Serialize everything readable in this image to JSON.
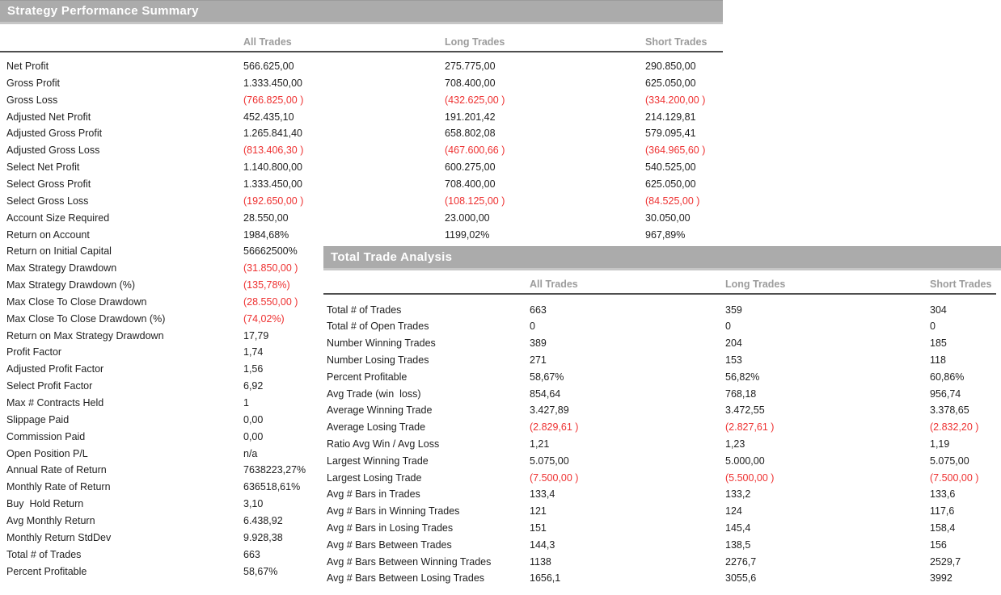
{
  "colors": {
    "header_bar": "#ababab",
    "header_bar_edge_top": "#9b9b9b",
    "header_bar_edge_bottom": "#c6c6c6",
    "header_title_text": "#ffffff",
    "column_header_text": "#9c9c9c",
    "body_text": "#1f1f1f",
    "negative_value": "#ee3131",
    "rule_line": "#4f4f4f"
  },
  "performance_summary": {
    "title": "Strategy Performance Summary",
    "columns": [
      "All Trades",
      "Long Trades",
      "Short Trades"
    ],
    "rows": [
      {
        "label": "Net Profit",
        "all": "566.625,00",
        "long": "275.775,00",
        "short": "290.850,00"
      },
      {
        "label": "Gross Profit",
        "all": "1.333.450,00",
        "long": "708.400,00",
        "short": "625.050,00"
      },
      {
        "label": "Gross Loss",
        "all": "(766.825,00 )",
        "long": "(432.625,00 )",
        "short": "(334.200,00 )"
      },
      {
        "label": "Adjusted Net Profit",
        "all": "452.435,10",
        "long": "191.201,42",
        "short": "214.129,81"
      },
      {
        "label": "Adjusted Gross Profit",
        "all": "1.265.841,40",
        "long": "658.802,08",
        "short": "579.095,41"
      },
      {
        "label": "Adjusted Gross Loss",
        "all": "(813.406,30 )",
        "long": "(467.600,66 )",
        "short": "(364.965,60 )"
      },
      {
        "label": "Select Net Profit",
        "all": "1.140.800,00",
        "long": "600.275,00",
        "short": "540.525,00"
      },
      {
        "label": "Select Gross Profit",
        "all": "1.333.450,00",
        "long": "708.400,00",
        "short": "625.050,00"
      },
      {
        "label": "Select Gross Loss",
        "all": "(192.650,00 )",
        "long": "(108.125,00 )",
        "short": "(84.525,00 )"
      },
      {
        "label": "Account Size Required",
        "all": "28.550,00",
        "long": "23.000,00",
        "short": "30.050,00"
      },
      {
        "label": "Return on Account",
        "all": "1984,68%",
        "long": "1199,02%",
        "short": "967,89%"
      },
      {
        "label": "Return on Initial Capital",
        "all": "56662500%",
        "long": "",
        "short": ""
      },
      {
        "label": "Max Strategy Drawdown",
        "all": "(31.850,00 )",
        "long": "",
        "short": ""
      },
      {
        "label": "Max Strategy Drawdown (%)",
        "all": "(135,78%)",
        "long": "",
        "short": ""
      },
      {
        "label": "Max Close To Close Drawdown",
        "all": "(28.550,00 )",
        "long": "",
        "short": ""
      },
      {
        "label": "Max Close To Close Drawdown (%)",
        "all": "(74,02%)",
        "long": "",
        "short": ""
      },
      {
        "label": "Return on Max Strategy Drawdown",
        "all": "17,79",
        "long": "",
        "short": ""
      },
      {
        "label": "Profit Factor",
        "all": "1,74",
        "long": "",
        "short": ""
      },
      {
        "label": "Adjusted Profit Factor",
        "all": "1,56",
        "long": "",
        "short": ""
      },
      {
        "label": "Select Profit Factor",
        "all": "6,92",
        "long": "",
        "short": ""
      },
      {
        "label": "Max # Contracts Held",
        "all": "1",
        "long": "",
        "short": ""
      },
      {
        "label": "Slippage Paid",
        "all": "0,00",
        "long": "",
        "short": ""
      },
      {
        "label": "Commission Paid",
        "all": "0,00",
        "long": "",
        "short": ""
      },
      {
        "label": "Open Position P/L",
        "all": "n/a",
        "long": "",
        "short": ""
      },
      {
        "label": "Annual Rate of Return",
        "all": "7638223,27%",
        "long": "",
        "short": ""
      },
      {
        "label": "Monthly Rate of Return",
        "all": "636518,61%",
        "long": "",
        "short": ""
      },
      {
        "label": "Buy  Hold Return",
        "all": "3,10",
        "long": "",
        "short": ""
      },
      {
        "label": "Avg Monthly Return",
        "all": "6.438,92",
        "long": "",
        "short": ""
      },
      {
        "label": "Monthly Return StdDev",
        "all": "9.928,38",
        "long": "",
        "short": ""
      },
      {
        "label": "Total # of Trades",
        "all": "663",
        "long": "",
        "short": ""
      },
      {
        "label": "Percent Profitable",
        "all": "58,67%",
        "long": "",
        "short": ""
      }
    ]
  },
  "trade_analysis": {
    "title": "Total Trade Analysis",
    "columns": [
      "All Trades",
      "Long Trades",
      "Short Trades"
    ],
    "rows": [
      {
        "label": "Total # of Trades",
        "all": "663",
        "long": "359",
        "short": "304"
      },
      {
        "label": "Total # of Open Trades",
        "all": "0",
        "long": "0",
        "short": "0"
      },
      {
        "label": "Number Winning Trades",
        "all": "389",
        "long": "204",
        "short": "185"
      },
      {
        "label": "Number Losing Trades",
        "all": "271",
        "long": "153",
        "short": "118"
      },
      {
        "label": "Percent Profitable",
        "all": "58,67%",
        "long": "56,82%",
        "short": "60,86%"
      },
      {
        "label": "Avg Trade (win  loss)",
        "all": "854,64",
        "long": "768,18",
        "short": "956,74"
      },
      {
        "label": "Average Winning Trade",
        "all": "3.427,89",
        "long": "3.472,55",
        "short": "3.378,65"
      },
      {
        "label": "Average Losing Trade",
        "all": "(2.829,61 )",
        "long": "(2.827,61 )",
        "short": "(2.832,20 )"
      },
      {
        "label": "Ratio Avg Win / Avg Loss",
        "all": "1,21",
        "long": "1,23",
        "short": "1,19"
      },
      {
        "label": "Largest Winning Trade",
        "all": "5.075,00",
        "long": "5.000,00",
        "short": "5.075,00"
      },
      {
        "label": "Largest Losing Trade",
        "all": "(7.500,00 )",
        "long": "(5.500,00 )",
        "short": "(7.500,00 )"
      },
      {
        "label": "Avg # Bars in Trades",
        "all": "133,4",
        "long": "133,2",
        "short": "133,6"
      },
      {
        "label": "Avg # Bars in Winning Trades",
        "all": "121",
        "long": "124",
        "short": "117,6"
      },
      {
        "label": "Avg # Bars in Losing Trades",
        "all": "151",
        "long": "145,4",
        "short": "158,4"
      },
      {
        "label": "Avg # Bars Between Trades",
        "all": "144,3",
        "long": "138,5",
        "short": "156"
      },
      {
        "label": "Avg # Bars Between Winning Trades",
        "all": "1138",
        "long": "2276,7",
        "short": "2529,7"
      },
      {
        "label": "Avg # Bars Between Losing Trades",
        "all": "1656,1",
        "long": "3055,6",
        "short": "3992"
      }
    ]
  }
}
